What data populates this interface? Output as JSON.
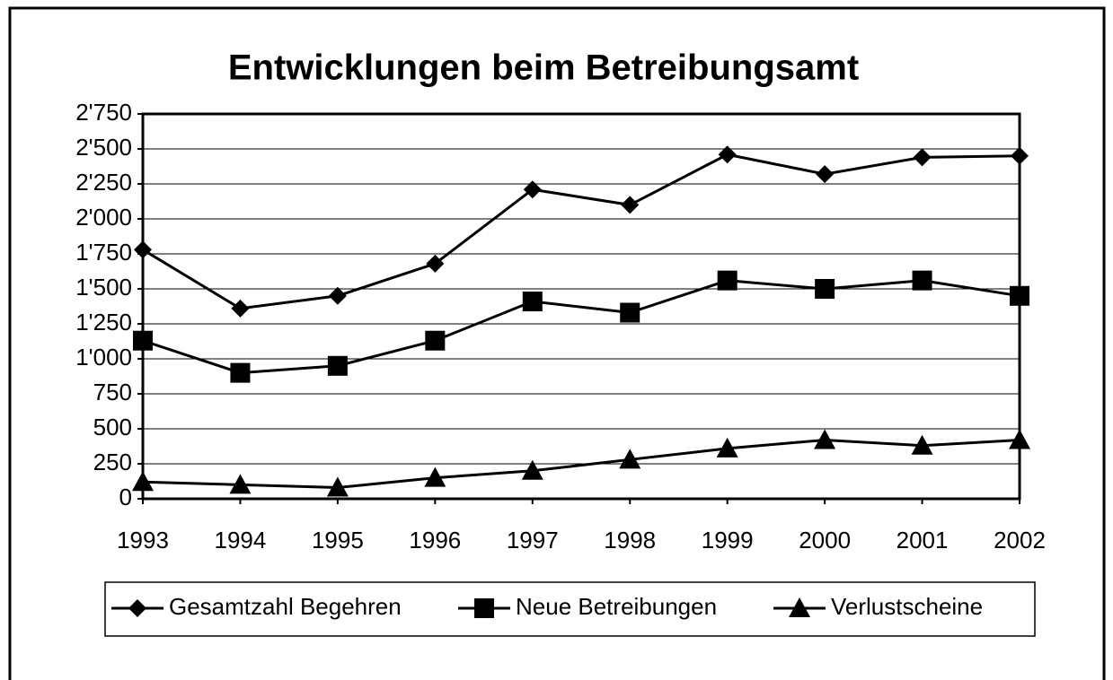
{
  "chart_data": {
    "type": "line",
    "title": "Entwicklungen beim Betreibungsamt",
    "categories": [
      "1993",
      "1994",
      "1995",
      "1996",
      "1997",
      "1998",
      "1999",
      "2000",
      "2001",
      "2002"
    ],
    "series": [
      {
        "name": "Gesamtzahl Begehren",
        "color": "#000000",
        "marker": "diamond",
        "values": [
          1780,
          1360,
          1450,
          1680,
          2210,
          2100,
          2460,
          2320,
          2440,
          2450
        ]
      },
      {
        "name": "Neue Betreibungen",
        "color": "#000000",
        "marker": "square",
        "values": [
          1130,
          900,
          950,
          1130,
          1410,
          1330,
          1560,
          1500,
          1560,
          1450
        ]
      },
      {
        "name": "Verlustscheine",
        "color": "#000000",
        "marker": "triangle",
        "values": [
          120,
          100,
          80,
          150,
          200,
          280,
          360,
          420,
          380,
          420
        ]
      }
    ],
    "ylim": [
      0,
      2750
    ],
    "yticks": [
      0,
      250,
      500,
      750,
      {
        "value": 1000,
        "label": "1'000"
      },
      {
        "value": 1250,
        "label": "1'250"
      },
      {
        "value": 1500,
        "label": "1'500"
      },
      {
        "value": 1750,
        "label": "1'750"
      },
      {
        "value": 2000,
        "label": "2'000"
      },
      {
        "value": 2250,
        "label": "2'250"
      },
      {
        "value": 2500,
        "label": "2'500"
      },
      {
        "value": 2750,
        "label": "2'750"
      }
    ],
    "grid": true,
    "legend": "bottom"
  }
}
